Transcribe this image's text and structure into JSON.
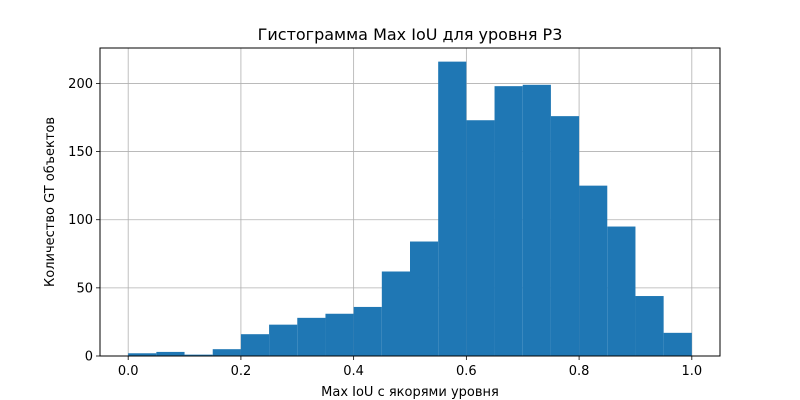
{
  "chart_data": {
    "type": "bar",
    "title": "Гистограмма Max IoU для уровня P3",
    "xlabel": "Max IoU с якорями уровня",
    "ylabel": "Количество GT объектов",
    "xlim": [
      -0.05,
      1.05
    ],
    "ylim": [
      0,
      226
    ],
    "grid": true,
    "bar_color": "#1f77b4",
    "x_ticks": [
      0.0,
      0.2,
      0.4,
      0.6,
      0.8,
      1.0
    ],
    "x_tick_labels": [
      "0.0",
      "0.2",
      "0.4",
      "0.6",
      "0.8",
      "1.0"
    ],
    "y_ticks": [
      0,
      50,
      100,
      150,
      200
    ],
    "y_tick_labels": [
      "0",
      "50",
      "100",
      "150",
      "200"
    ],
    "bin_edges": [
      0.0,
      0.05,
      0.1,
      0.15,
      0.2,
      0.25,
      0.3,
      0.35,
      0.4,
      0.45,
      0.5,
      0.55,
      0.6,
      0.65,
      0.7,
      0.75,
      0.8,
      0.85,
      0.9,
      0.95,
      1.0
    ],
    "values": [
      2,
      3,
      1,
      5,
      16,
      23,
      28,
      31,
      36,
      62,
      84,
      216,
      173,
      198,
      199,
      176,
      125,
      95,
      44,
      17
    ]
  }
}
